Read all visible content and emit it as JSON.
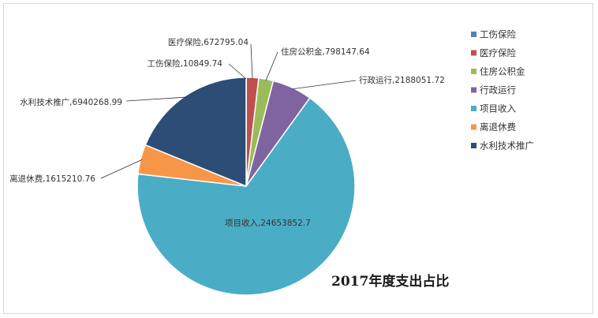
{
  "chart_data": {
    "type": "pie",
    "title": "2017年度支出占比",
    "legend_position": "right",
    "slices": [
      {
        "name": "工伤保险",
        "value": 10849.74,
        "label": "工伤保险,10849.74",
        "color": "#4f81bd"
      },
      {
        "name": "医疗保险",
        "value": 672795.04,
        "label": "医疗保险,672795.04",
        "color": "#c0504d"
      },
      {
        "name": "住房公积金",
        "value": 798147.64,
        "label": "住房公积金,798147.64",
        "color": "#9bbb59"
      },
      {
        "name": "行政运行",
        "value": 2188051.72,
        "label": "行政运行,2188051.72",
        "color": "#8064a2"
      },
      {
        "name": "项目收入",
        "value": 24653852.7,
        "label": "项目收入,24653852.7",
        "color": "#4bacc6"
      },
      {
        "name": "离退休费",
        "value": 1615210.76,
        "label": "离退休费,1615210.76",
        "color": "#f79646"
      },
      {
        "name": "水利技术推广",
        "value": 6940268.99,
        "label": "水利技术推广,6940268.99",
        "color": "#2c4d75"
      }
    ]
  }
}
